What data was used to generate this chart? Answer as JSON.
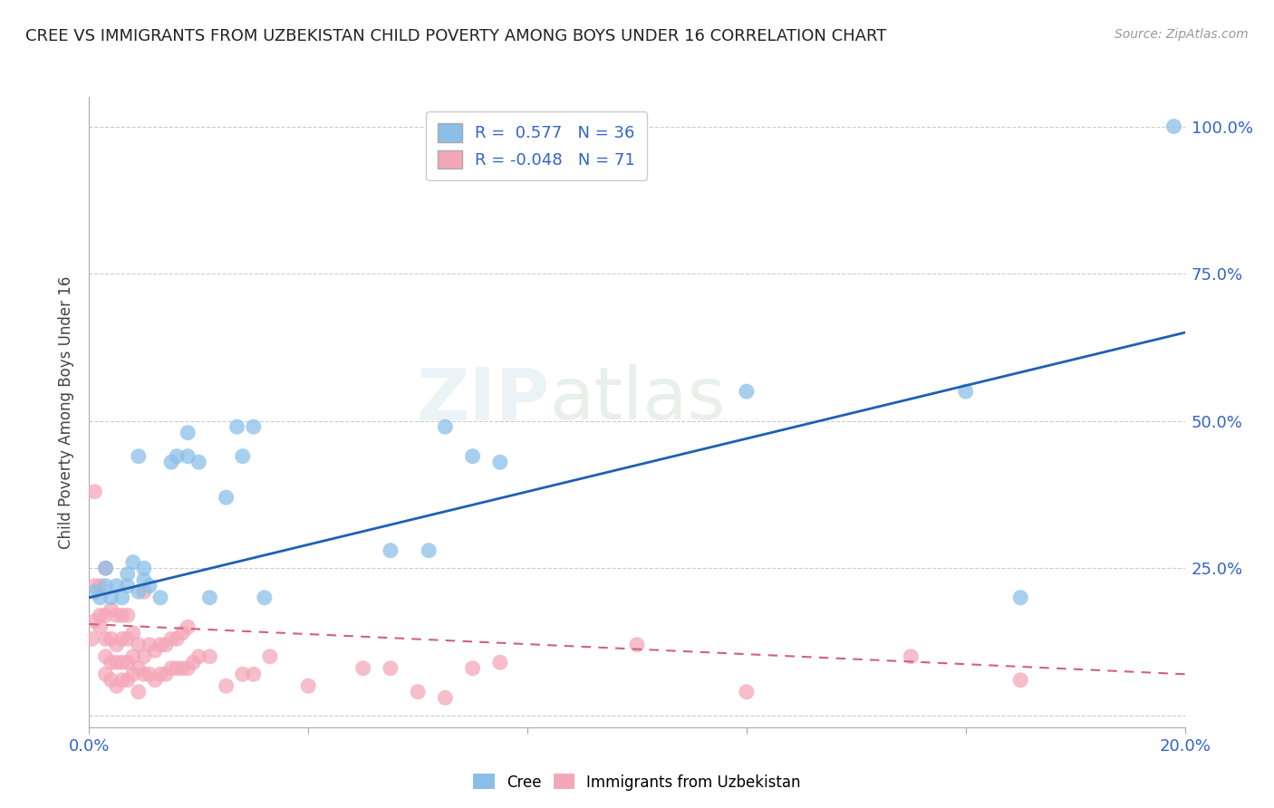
{
  "title": "CREE VS IMMIGRANTS FROM UZBEKISTAN CHILD POVERTY AMONG BOYS UNDER 16 CORRELATION CHART",
  "source": "Source: ZipAtlas.com",
  "ylabel": "Child Poverty Among Boys Under 16",
  "xlim": [
    0.0,
    0.2
  ],
  "ylim": [
    -0.02,
    1.05
  ],
  "xtick_vals": [
    0.0,
    0.04,
    0.08,
    0.12,
    0.16,
    0.2
  ],
  "ytick_vals": [
    0.0,
    0.25,
    0.5,
    0.75,
    1.0
  ],
  "cree_color": "#8bbfe8",
  "uzbek_color": "#f4a7b9",
  "cree_line_color": "#2060b0",
  "uzbek_line_color": "#d06080",
  "cree_R": 0.577,
  "cree_N": 36,
  "uzbek_R": -0.048,
  "uzbek_N": 71,
  "watermark": "ZIPatlas",
  "background_color": "#ffffff",
  "grid_color": "#cccccc",
  "cree_x": [
    0.001,
    0.002,
    0.003,
    0.003,
    0.004,
    0.005,
    0.006,
    0.007,
    0.007,
    0.008,
    0.009,
    0.009,
    0.01,
    0.01,
    0.011,
    0.013,
    0.015,
    0.016,
    0.018,
    0.018,
    0.02,
    0.022,
    0.025,
    0.027,
    0.028,
    0.03,
    0.032,
    0.055,
    0.062,
    0.065,
    0.07,
    0.075,
    0.12,
    0.16,
    0.17,
    0.198
  ],
  "cree_y": [
    0.21,
    0.2,
    0.22,
    0.25,
    0.2,
    0.22,
    0.2,
    0.24,
    0.22,
    0.26,
    0.21,
    0.44,
    0.25,
    0.23,
    0.22,
    0.2,
    0.43,
    0.44,
    0.44,
    0.48,
    0.43,
    0.2,
    0.37,
    0.49,
    0.44,
    0.49,
    0.2,
    0.28,
    0.28,
    0.49,
    0.44,
    0.43,
    0.55,
    0.55,
    0.2,
    1.0
  ],
  "uzbek_x": [
    0.0005,
    0.001,
    0.001,
    0.001,
    0.002,
    0.002,
    0.002,
    0.003,
    0.003,
    0.003,
    0.003,
    0.003,
    0.004,
    0.004,
    0.004,
    0.004,
    0.005,
    0.005,
    0.005,
    0.005,
    0.006,
    0.006,
    0.006,
    0.006,
    0.007,
    0.007,
    0.007,
    0.007,
    0.008,
    0.008,
    0.008,
    0.009,
    0.009,
    0.009,
    0.01,
    0.01,
    0.01,
    0.011,
    0.011,
    0.012,
    0.012,
    0.013,
    0.013,
    0.014,
    0.014,
    0.015,
    0.015,
    0.016,
    0.016,
    0.017,
    0.017,
    0.018,
    0.018,
    0.019,
    0.02,
    0.022,
    0.025,
    0.028,
    0.03,
    0.033,
    0.04,
    0.05,
    0.055,
    0.06,
    0.065,
    0.07,
    0.075,
    0.1,
    0.12,
    0.15,
    0.17
  ],
  "uzbek_y": [
    0.13,
    0.16,
    0.22,
    0.38,
    0.15,
    0.17,
    0.22,
    0.07,
    0.1,
    0.13,
    0.17,
    0.25,
    0.06,
    0.09,
    0.13,
    0.18,
    0.05,
    0.09,
    0.12,
    0.17,
    0.06,
    0.09,
    0.13,
    0.17,
    0.06,
    0.09,
    0.13,
    0.17,
    0.07,
    0.1,
    0.14,
    0.04,
    0.08,
    0.12,
    0.07,
    0.1,
    0.21,
    0.07,
    0.12,
    0.06,
    0.11,
    0.07,
    0.12,
    0.07,
    0.12,
    0.08,
    0.13,
    0.08,
    0.13,
    0.08,
    0.14,
    0.08,
    0.15,
    0.09,
    0.1,
    0.1,
    0.05,
    0.07,
    0.07,
    0.1,
    0.05,
    0.08,
    0.08,
    0.04,
    0.03,
    0.08,
    0.09,
    0.12,
    0.04,
    0.1,
    0.06
  ],
  "cree_line_x0": 0.0,
  "cree_line_y0": 0.2,
  "cree_line_x1": 0.2,
  "cree_line_y1": 0.65,
  "uzbek_line_x0": 0.0,
  "uzbek_line_y0": 0.155,
  "uzbek_line_x1": 0.2,
  "uzbek_line_y1": 0.07
}
